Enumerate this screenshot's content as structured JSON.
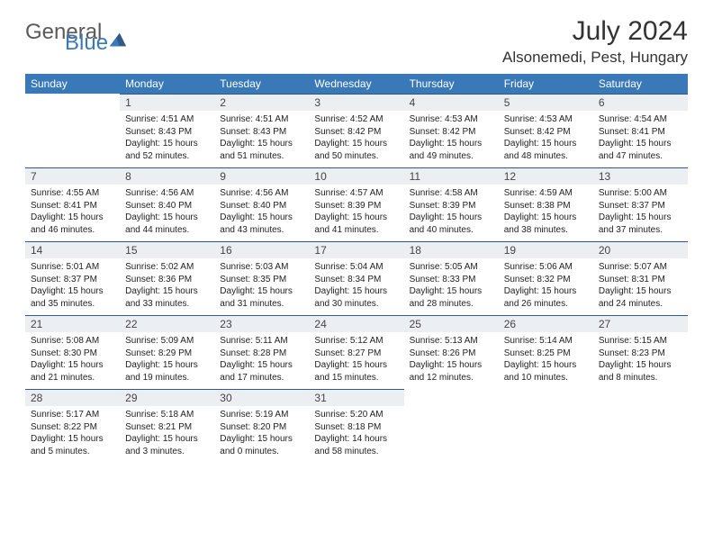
{
  "brand": {
    "word1": "General",
    "word2": "Blue"
  },
  "title": "July 2024",
  "location": "Alsonemedi, Pest, Hungary",
  "theme": {
    "header_bg": "#3a79b7",
    "header_fg": "#ffffff",
    "daynum_bg": "#eceff1",
    "rule_color": "#2f5a88",
    "page_bg": "#ffffff"
  },
  "weekdays": [
    "Sunday",
    "Monday",
    "Tuesday",
    "Wednesday",
    "Thursday",
    "Friday",
    "Saturday"
  ],
  "weeks": [
    [
      {
        "n": "",
        "lines": []
      },
      {
        "n": "1",
        "lines": [
          "Sunrise: 4:51 AM",
          "Sunset: 8:43 PM",
          "Daylight: 15 hours and 52 minutes."
        ]
      },
      {
        "n": "2",
        "lines": [
          "Sunrise: 4:51 AM",
          "Sunset: 8:43 PM",
          "Daylight: 15 hours and 51 minutes."
        ]
      },
      {
        "n": "3",
        "lines": [
          "Sunrise: 4:52 AM",
          "Sunset: 8:42 PM",
          "Daylight: 15 hours and 50 minutes."
        ]
      },
      {
        "n": "4",
        "lines": [
          "Sunrise: 4:53 AM",
          "Sunset: 8:42 PM",
          "Daylight: 15 hours and 49 minutes."
        ]
      },
      {
        "n": "5",
        "lines": [
          "Sunrise: 4:53 AM",
          "Sunset: 8:42 PM",
          "Daylight: 15 hours and 48 minutes."
        ]
      },
      {
        "n": "6",
        "lines": [
          "Sunrise: 4:54 AM",
          "Sunset: 8:41 PM",
          "Daylight: 15 hours and 47 minutes."
        ]
      }
    ],
    [
      {
        "n": "7",
        "lines": [
          "Sunrise: 4:55 AM",
          "Sunset: 8:41 PM",
          "Daylight: 15 hours and 46 minutes."
        ]
      },
      {
        "n": "8",
        "lines": [
          "Sunrise: 4:56 AM",
          "Sunset: 8:40 PM",
          "Daylight: 15 hours and 44 minutes."
        ]
      },
      {
        "n": "9",
        "lines": [
          "Sunrise: 4:56 AM",
          "Sunset: 8:40 PM",
          "Daylight: 15 hours and 43 minutes."
        ]
      },
      {
        "n": "10",
        "lines": [
          "Sunrise: 4:57 AM",
          "Sunset: 8:39 PM",
          "Daylight: 15 hours and 41 minutes."
        ]
      },
      {
        "n": "11",
        "lines": [
          "Sunrise: 4:58 AM",
          "Sunset: 8:39 PM",
          "Daylight: 15 hours and 40 minutes."
        ]
      },
      {
        "n": "12",
        "lines": [
          "Sunrise: 4:59 AM",
          "Sunset: 8:38 PM",
          "Daylight: 15 hours and 38 minutes."
        ]
      },
      {
        "n": "13",
        "lines": [
          "Sunrise: 5:00 AM",
          "Sunset: 8:37 PM",
          "Daylight: 15 hours and 37 minutes."
        ]
      }
    ],
    [
      {
        "n": "14",
        "lines": [
          "Sunrise: 5:01 AM",
          "Sunset: 8:37 PM",
          "Daylight: 15 hours and 35 minutes."
        ]
      },
      {
        "n": "15",
        "lines": [
          "Sunrise: 5:02 AM",
          "Sunset: 8:36 PM",
          "Daylight: 15 hours and 33 minutes."
        ]
      },
      {
        "n": "16",
        "lines": [
          "Sunrise: 5:03 AM",
          "Sunset: 8:35 PM",
          "Daylight: 15 hours and 31 minutes."
        ]
      },
      {
        "n": "17",
        "lines": [
          "Sunrise: 5:04 AM",
          "Sunset: 8:34 PM",
          "Daylight: 15 hours and 30 minutes."
        ]
      },
      {
        "n": "18",
        "lines": [
          "Sunrise: 5:05 AM",
          "Sunset: 8:33 PM",
          "Daylight: 15 hours and 28 minutes."
        ]
      },
      {
        "n": "19",
        "lines": [
          "Sunrise: 5:06 AM",
          "Sunset: 8:32 PM",
          "Daylight: 15 hours and 26 minutes."
        ]
      },
      {
        "n": "20",
        "lines": [
          "Sunrise: 5:07 AM",
          "Sunset: 8:31 PM",
          "Daylight: 15 hours and 24 minutes."
        ]
      }
    ],
    [
      {
        "n": "21",
        "lines": [
          "Sunrise: 5:08 AM",
          "Sunset: 8:30 PM",
          "Daylight: 15 hours and 21 minutes."
        ]
      },
      {
        "n": "22",
        "lines": [
          "Sunrise: 5:09 AM",
          "Sunset: 8:29 PM",
          "Daylight: 15 hours and 19 minutes."
        ]
      },
      {
        "n": "23",
        "lines": [
          "Sunrise: 5:11 AM",
          "Sunset: 8:28 PM",
          "Daylight: 15 hours and 17 minutes."
        ]
      },
      {
        "n": "24",
        "lines": [
          "Sunrise: 5:12 AM",
          "Sunset: 8:27 PM",
          "Daylight: 15 hours and 15 minutes."
        ]
      },
      {
        "n": "25",
        "lines": [
          "Sunrise: 5:13 AM",
          "Sunset: 8:26 PM",
          "Daylight: 15 hours and 12 minutes."
        ]
      },
      {
        "n": "26",
        "lines": [
          "Sunrise: 5:14 AM",
          "Sunset: 8:25 PM",
          "Daylight: 15 hours and 10 minutes."
        ]
      },
      {
        "n": "27",
        "lines": [
          "Sunrise: 5:15 AM",
          "Sunset: 8:23 PM",
          "Daylight: 15 hours and 8 minutes."
        ]
      }
    ],
    [
      {
        "n": "28",
        "lines": [
          "Sunrise: 5:17 AM",
          "Sunset: 8:22 PM",
          "Daylight: 15 hours and 5 minutes."
        ]
      },
      {
        "n": "29",
        "lines": [
          "Sunrise: 5:18 AM",
          "Sunset: 8:21 PM",
          "Daylight: 15 hours and 3 minutes."
        ]
      },
      {
        "n": "30",
        "lines": [
          "Sunrise: 5:19 AM",
          "Sunset: 8:20 PM",
          "Daylight: 15 hours and 0 minutes."
        ]
      },
      {
        "n": "31",
        "lines": [
          "Sunrise: 5:20 AM",
          "Sunset: 8:18 PM",
          "Daylight: 14 hours and 58 minutes."
        ]
      },
      {
        "n": "",
        "lines": []
      },
      {
        "n": "",
        "lines": []
      },
      {
        "n": "",
        "lines": []
      }
    ]
  ]
}
